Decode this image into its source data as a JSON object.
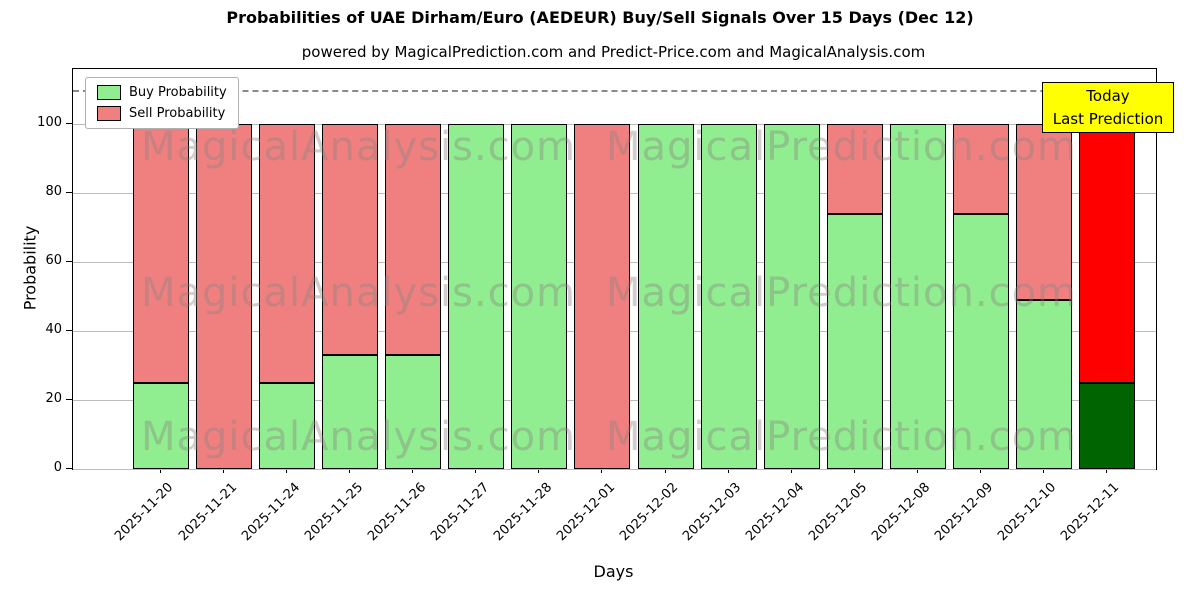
{
  "chart": {
    "title": "Probabilities of UAE Dirham/Euro (AEDEUR) Buy/Sell Signals Over 15 Days (Dec 12)",
    "subtitle": "powered by MagicalPrediction.com and Predict-Price.com and MagicalAnalysis.com"
  },
  "annotation": {
    "line1": "Today",
    "line2": "Last Prediction",
    "bg_color": "#ffff00"
  },
  "watermark": {
    "left_text": "MagicalAnalysis.com",
    "right_text": "MagicalPrediction.com"
  },
  "chart_data": {
    "type": "bar",
    "stacked": true,
    "categories": [
      "2025-11-20",
      "2025-11-21",
      "2025-11-24",
      "2025-11-25",
      "2025-11-26",
      "2025-11-27",
      "2025-11-28",
      "2025-12-01",
      "2025-12-02",
      "2025-12-03",
      "2025-12-04",
      "2025-12-05",
      "2025-12-08",
      "2025-12-09",
      "2025-12-10",
      "2025-12-11"
    ],
    "series": [
      {
        "name": "Buy Probability",
        "color": "#90ee90",
        "values": [
          25,
          0,
          25,
          33,
          33,
          100,
          100,
          0,
          100,
          100,
          100,
          74,
          100,
          74,
          49,
          25
        ]
      },
      {
        "name": "Sell Probability",
        "color": "#f08080",
        "values": [
          75,
          100,
          75,
          67,
          67,
          0,
          0,
          100,
          0,
          0,
          0,
          26,
          0,
          26,
          51,
          75
        ]
      }
    ],
    "last_bar_colors": {
      "buy": "#006400",
      "sell": "#ff0000"
    },
    "xlabel": "Days",
    "ylabel": "Probability",
    "yticks": [
      0,
      20,
      40,
      60,
      80,
      100
    ],
    "ylim": [
      0,
      116
    ],
    "dashed_line_y": 110,
    "grid": true,
    "legend_position": "upper left",
    "bar_edge_color": "#000000"
  }
}
